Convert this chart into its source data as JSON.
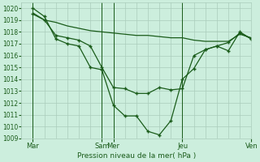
{
  "title": "Pression niveau de la mer( hPa )",
  "bg_color": "#cceedd",
  "grid_color": "#aaccbb",
  "line_color": "#1a5c1a",
  "ylim": [
    1009,
    1020.5
  ],
  "yticks": [
    1009,
    1010,
    1011,
    1012,
    1013,
    1014,
    1015,
    1016,
    1017,
    1018,
    1019,
    1020
  ],
  "xlim": [
    0,
    20
  ],
  "vline_positions": [
    1,
    7,
    8,
    14,
    20
  ],
  "xtick_positions": [
    1,
    7,
    8,
    14,
    20
  ],
  "xtick_labels": [
    "Mar",
    "Sam",
    "Mer",
    "Jeu",
    "Ven"
  ],
  "line_main_x": [
    1,
    2,
    3,
    4,
    5,
    6,
    7,
    8,
    9,
    10,
    11,
    12,
    13,
    14,
    15,
    16,
    17,
    18,
    19,
    20
  ],
  "line_main_y": [
    1020.0,
    1019.3,
    1017.4,
    1017.0,
    1016.8,
    1015.0,
    1014.8,
    1011.8,
    1010.9,
    1010.9,
    1009.6,
    1009.3,
    1010.5,
    1014.0,
    1014.9,
    1016.5,
    1016.8,
    1016.4,
    1018.0,
    1017.4
  ],
  "line_flat_x": [
    1,
    2,
    3,
    4,
    5,
    6,
    7,
    8,
    9,
    10,
    11,
    12,
    13,
    14,
    15,
    16,
    17,
    18,
    19,
    20
  ],
  "line_flat_y": [
    1019.6,
    1019.0,
    1018.8,
    1018.5,
    1018.3,
    1018.1,
    1018.0,
    1017.9,
    1017.8,
    1017.7,
    1017.7,
    1017.6,
    1017.5,
    1017.5,
    1017.3,
    1017.2,
    1017.2,
    1017.2,
    1017.8,
    1017.5
  ],
  "line_mid_x": [
    1,
    2,
    3,
    4,
    5,
    6,
    7,
    8,
    9,
    10,
    11,
    12,
    13,
    14,
    15,
    16,
    17,
    18,
    19,
    20
  ],
  "line_mid_y": [
    1019.5,
    1019.0,
    1017.7,
    1017.5,
    1017.3,
    1016.8,
    1015.0,
    1013.3,
    1013.2,
    1012.8,
    1012.8,
    1013.3,
    1013.1,
    1013.2,
    1016.0,
    1016.5,
    1016.8,
    1017.1,
    1017.9,
    1017.4
  ]
}
